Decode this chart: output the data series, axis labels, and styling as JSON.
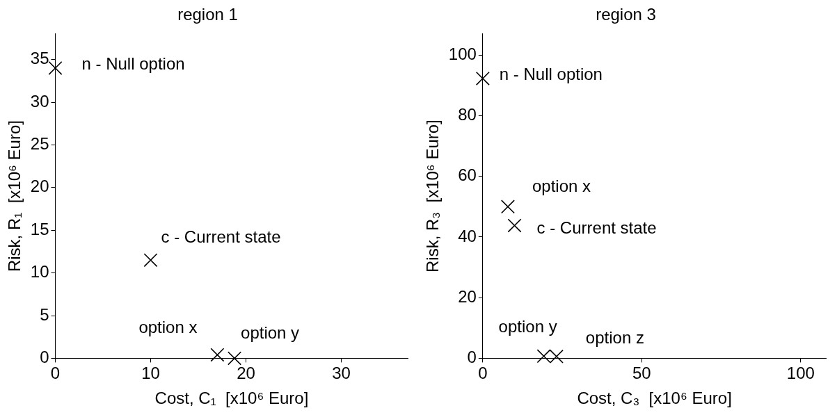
{
  "chart_data": [
    {
      "type": "scatter",
      "title": "region 1",
      "xlabel": "Cost, C₁  [x10⁶ Euro]",
      "ylabel": "Risk, R₁  [x10⁶ Euro]",
      "series": [
        {
          "color": "#000000",
          "x": [
            0,
            10,
            17,
            18.8
          ],
          "values": [
            34,
            11.5,
            0.4,
            0
          ]
        }
      ],
      "xlim": [
        0,
        37
      ],
      "xticks": [
        0,
        10,
        20,
        30
      ],
      "ylim": [
        0,
        38
      ],
      "yticks": [
        0,
        5,
        10,
        15,
        20,
        25,
        30,
        35
      ],
      "marker": "cross",
      "grid": false,
      "legend": false,
      "annotations": [
        {
          "text": "n - Null option",
          "x": 0,
          "y": 34
        },
        {
          "text": "c - Current state",
          "x": 10,
          "y": 11.5
        },
        {
          "text": "option x",
          "x": 17,
          "y": 0.4
        },
        {
          "text": "option y",
          "x": 18.8,
          "y": 0
        }
      ]
    },
    {
      "type": "scatter",
      "title": "region 3",
      "xlabel": "Cost, C₃  [x10⁶ Euro]",
      "ylabel": "Risk, R₃  [x10⁶ Euro]",
      "series": [
        {
          "color": "#000000",
          "x": [
            0,
            7.9,
            10,
            19.2,
            23.2
          ],
          "values": [
            92.3,
            50,
            43.8,
            0.7,
            0.6
          ]
        }
      ],
      "xlim": [
        0,
        108
      ],
      "xticks": [
        0,
        50,
        100
      ],
      "ylim": [
        0,
        107
      ],
      "yticks": [
        0,
        20,
        40,
        60,
        80,
        100
      ],
      "marker": "cross",
      "grid": false,
      "legend": false,
      "annotations": [
        {
          "text": "n - Null option",
          "x": 0,
          "y": 92.3
        },
        {
          "text": "option x",
          "x": 7.9,
          "y": 50
        },
        {
          "text": "c - Current state",
          "x": 10,
          "y": 43.8
        },
        {
          "text": "option y",
          "x": 19.2,
          "y": 0.7
        },
        {
          "text": "option z",
          "x": 23.2,
          "y": 0.6
        }
      ]
    }
  ]
}
